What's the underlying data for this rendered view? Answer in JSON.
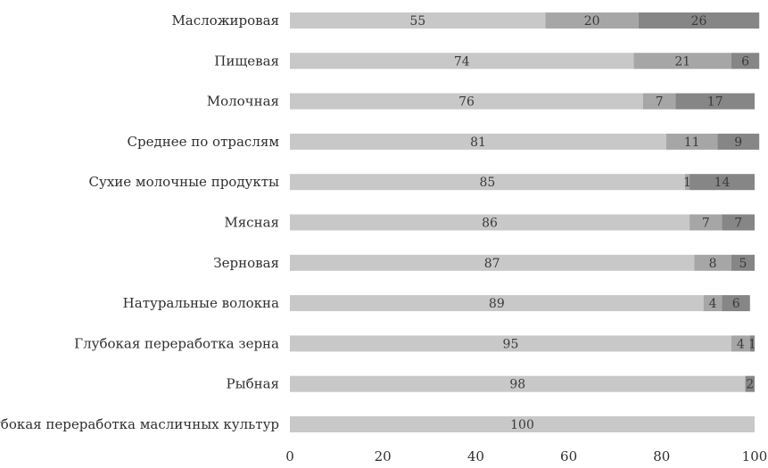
{
  "chart_data": {
    "type": "bar",
    "orientation": "horizontal",
    "stacked": true,
    "categories": [
      "Масложировая",
      "Пищевая",
      "Молочная",
      "Среднее по отраслям",
      "Сухие молочные продукты",
      "Мясная",
      "Зерновая",
      "Натуральные волокна",
      "Глубокая переработка зерна",
      "Рыбная",
      "Глубокая переработка масличных культур"
    ],
    "series": [
      {
        "values": [
          55,
          74,
          76,
          81,
          85,
          86,
          87,
          89,
          95,
          98,
          100
        ],
        "color": "#c8c8c8"
      },
      {
        "values": [
          20,
          21,
          7,
          11,
          1,
          7,
          8,
          4,
          4,
          null,
          null
        ],
        "color": "#a6a6a6"
      },
      {
        "values": [
          26,
          6,
          17,
          9,
          14,
          7,
          5,
          6,
          1,
          2,
          null
        ],
        "color": "#868686"
      }
    ],
    "xlim": [
      0,
      100
    ],
    "xticks": [
      0,
      20,
      40,
      60,
      80,
      100
    ],
    "title": "",
    "xlabel": "",
    "ylabel": "",
    "grid": false,
    "legend": "none",
    "data_labels": true
  }
}
